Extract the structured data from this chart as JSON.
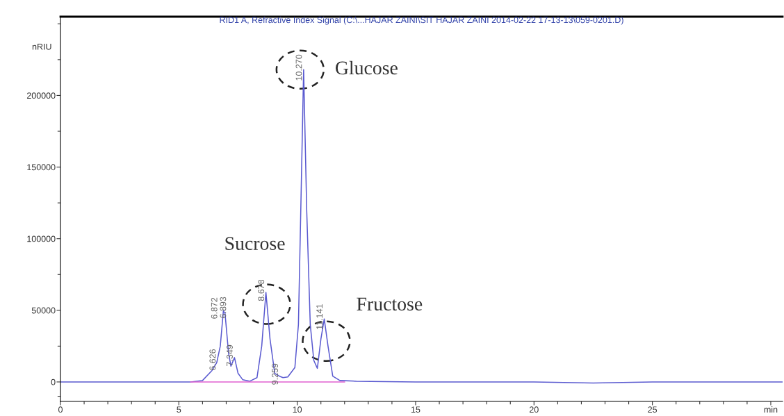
{
  "chart_data": {
    "type": "line",
    "title": "RID1 A, Refractive Index Signal (C:\\...HAJAR ZAINI\\SIT HAJAR ZAINI 2014-02-22 17-13-13\\059-0201.D)",
    "ylabel": "nRIU",
    "series": [
      {
        "color": "#5a5ad0",
        "x": [
          0,
          5.5,
          6.0,
          6.4,
          6.6,
          6.75,
          6.88,
          6.95,
          7.1,
          7.2,
          7.35,
          7.5,
          7.7,
          8.0,
          8.3,
          8.5,
          8.678,
          8.85,
          9.05,
          9.25,
          9.4,
          9.6,
          9.9,
          10.05,
          10.15,
          10.27,
          10.4,
          10.55,
          10.7,
          10.85,
          11.0,
          11.141,
          11.3,
          11.5,
          11.8,
          12.5,
          15,
          20,
          22.5,
          25,
          30.5
        ],
        "values": [
          0,
          0,
          1000,
          8000,
          13500,
          25000,
          49500,
          48000,
          20000,
          11000,
          17000,
          6000,
          1500,
          500,
          3000,
          25000,
          62500,
          30000,
          6000,
          4000,
          3000,
          3500,
          10000,
          40000,
          120000,
          218000,
          120000,
          40000,
          15000,
          9500,
          30000,
          44000,
          25000,
          4000,
          1000,
          500,
          0,
          0,
          -800,
          0,
          0
        ]
      },
      {
        "color": "#e060d0",
        "x": [
          5.5,
          12
        ],
        "values": [
          0,
          0
        ]
      }
    ],
    "annotations": [
      {
        "text": "Glucose",
        "x": 10.27,
        "y": 218000
      },
      {
        "text": "Sucrose",
        "x": 8.678,
        "y": 62500
      },
      {
        "text": "Fructose",
        "x": 11.141,
        "y": 44000
      },
      {
        "text": "6.626",
        "x": 6.626,
        "y": 14000
      },
      {
        "text": "6.872",
        "x": 6.872,
        "y": 50000
      },
      {
        "text": "6.893",
        "x": 6.893,
        "y": 50500
      },
      {
        "text": "7.349",
        "x": 7.349,
        "y": 17000
      },
      {
        "text": "8.678",
        "x": 8.678,
        "y": 62500
      },
      {
        "text": "9.259",
        "x": 9.259,
        "y": 4000
      },
      {
        "text": "10.270",
        "x": 10.27,
        "y": 218000
      },
      {
        "text": "11.141",
        "x": 11.141,
        "y": 44000
      }
    ],
    "xlim": [
      0,
      30.5
    ],
    "ylim": [
      -13600,
      255000
    ],
    "xticks": [
      0,
      {
        "value": 1,
        "label": null
      },
      {
        "value": 2,
        "label": null
      },
      {
        "value": 3,
        "label": null
      },
      {
        "value": 4,
        "label": null
      },
      5,
      {
        "value": 6,
        "label": null
      },
      {
        "value": 7,
        "label": null
      },
      {
        "value": 8,
        "label": null
      },
      {
        "value": 9,
        "label": null
      },
      10,
      {
        "value": 11,
        "label": null
      },
      {
        "value": 12,
        "label": null
      },
      {
        "value": 13,
        "label": null
      },
      {
        "value": 14,
        "label": null
      },
      15,
      {
        "value": 16,
        "label": null
      },
      {
        "value": 17,
        "label": null
      },
      {
        "value": 18,
        "label": null
      },
      {
        "value": 19,
        "label": null
      },
      20,
      {
        "value": 21,
        "label": null
      },
      {
        "value": 22,
        "label": null
      },
      {
        "value": 23,
        "label": null
      },
      {
        "value": 24,
        "label": null
      },
      25,
      {
        "value": 26,
        "label": null
      },
      {
        "value": 27,
        "label": null
      },
      {
        "value": 28,
        "label": null
      },
      {
        "value": 29,
        "label": null
      },
      {
        "value": 30,
        "label": "min"
      }
    ],
    "yticks": [
      {
        "value": -10000,
        "label": null
      },
      0,
      {
        "value": 25000,
        "label": null
      },
      50000,
      {
        "value": 75000,
        "label": null
      },
      100000,
      {
        "value": 125000,
        "label": null
      },
      150000,
      {
        "value": 175000,
        "label": null
      },
      200000,
      {
        "value": 225000,
        "label": null
      },
      {
        "value": 250000,
        "label": null
      }
    ],
    "grid": false,
    "legend": false,
    "marker": "none",
    "line_style": "solid"
  }
}
